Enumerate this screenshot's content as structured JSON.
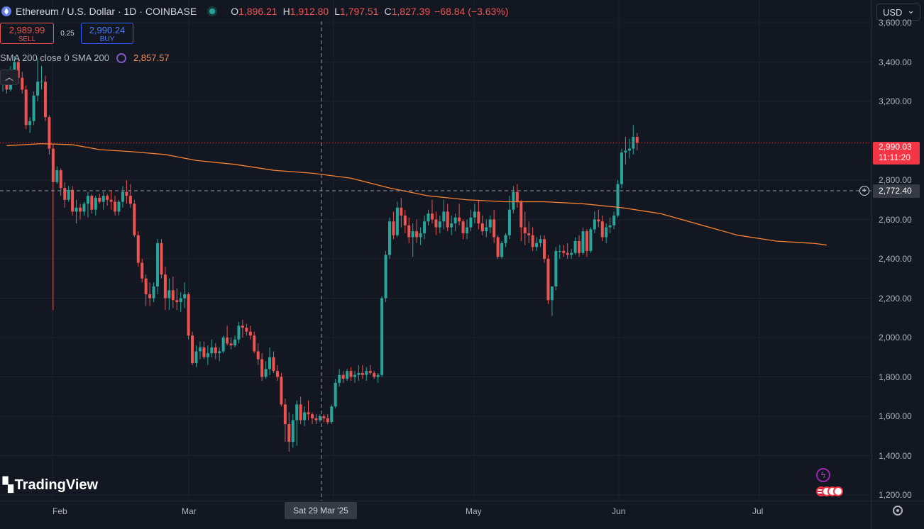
{
  "header": {
    "title": "Ethereum / U.S. Dollar · 1D · COINBASE",
    "open_label": "O",
    "open": "1,896.21",
    "high_label": "H",
    "high": "1,912.80",
    "low_label": "L",
    "low": "1,797.51",
    "close_label": "C",
    "close": "1,827.39",
    "change": "−68.84 (−3.63%)"
  },
  "trade": {
    "sell_price": "2,989.99",
    "sell_label": "SELL",
    "spread": "0.25",
    "buy_price": "2,990.24",
    "buy_label": "BUY"
  },
  "indicator": {
    "label": "SMA 200 close 0 SMA 200",
    "value": "2,857.57"
  },
  "currency": "USD",
  "price_axis": [
    "3,600.00",
    "3,400.00",
    "3,200.00",
    "2,800.00",
    "2,600.00",
    "2,400.00",
    "2,200.00",
    "2,000.00",
    "1,800.00",
    "1,600.00",
    "1,400.00",
    "1,200.00"
  ],
  "current_price": {
    "price": "2,990.03",
    "countdown": "11:11:20"
  },
  "crosshair": {
    "price": "2,772.40",
    "date": "Sat 29 Mar '25"
  },
  "time_axis": [
    "Feb",
    "Mar",
    "May",
    "Jun",
    "Jul"
  ],
  "brand": "TradingView",
  "colors": {
    "up": "#26a69a",
    "down": "#ef5350",
    "sma": "#f7812f",
    "bg": "#131722"
  },
  "chart_data": {
    "type": "candlestick",
    "ylim": [
      1200,
      3650
    ],
    "sma200": [
      [
        1,
        2975
      ],
      [
        10,
        2985
      ],
      [
        18,
        2980
      ],
      [
        25,
        2955
      ],
      [
        33,
        2945
      ],
      [
        42,
        2930
      ],
      [
        50,
        2900
      ],
      [
        60,
        2880
      ],
      [
        70,
        2850
      ],
      [
        80,
        2835
      ],
      [
        90,
        2810
      ],
      [
        100,
        2760
      ],
      [
        110,
        2720
      ],
      [
        120,
        2700
      ],
      [
        130,
        2690
      ],
      [
        140,
        2690
      ],
      [
        150,
        2680
      ],
      [
        160,
        2660
      ],
      [
        170,
        2630
      ],
      [
        180,
        2575
      ],
      [
        190,
        2520
      ],
      [
        200,
        2490
      ],
      [
        210,
        2478
      ],
      [
        213,
        2470
      ]
    ],
    "candles": [
      [
        3290,
        3350,
        3250,
        3330
      ],
      [
        3330,
        3360,
        3240,
        3260
      ],
      [
        3260,
        3380,
        3250,
        3350
      ],
      [
        3350,
        3430,
        3320,
        3400
      ],
      [
        3400,
        3420,
        3290,
        3320
      ],
      [
        3320,
        3350,
        3240,
        3260
      ],
      [
        3260,
        3280,
        3060,
        3080
      ],
      [
        3080,
        3120,
        3040,
        3100
      ],
      [
        3100,
        3250,
        3080,
        3230
      ],
      [
        3230,
        3420,
        3200,
        3300
      ],
      [
        3300,
        3380,
        3260,
        3300
      ],
      [
        3300,
        3330,
        3100,
        3120
      ],
      [
        3120,
        3130,
        2930,
        2960
      ],
      [
        2960,
        2980,
        2140,
        2790
      ],
      [
        2790,
        2870,
        2780,
        2850
      ],
      [
        2850,
        2860,
        2720,
        2760
      ],
      [
        2760,
        2790,
        2660,
        2700
      ],
      [
        2700,
        2770,
        2690,
        2750
      ],
      [
        2750,
        2770,
        2620,
        2640
      ],
      [
        2640,
        2700,
        2580,
        2660
      ],
      [
        2660,
        2680,
        2600,
        2640
      ],
      [
        2640,
        2690,
        2620,
        2680
      ],
      [
        2680,
        2740,
        2610,
        2720
      ],
      [
        2720,
        2730,
        2630,
        2650
      ],
      [
        2650,
        2720,
        2620,
        2710
      ],
      [
        2710,
        2730,
        2680,
        2690
      ],
      [
        2690,
        2740,
        2650,
        2720
      ],
      [
        2720,
        2730,
        2670,
        2700
      ],
      [
        2700,
        2750,
        2650,
        2690
      ],
      [
        2690,
        2720,
        2620,
        2640
      ],
      [
        2640,
        2700,
        2620,
        2690
      ],
      [
        2690,
        2770,
        2660,
        2740
      ],
      [
        2740,
        2800,
        2680,
        2720
      ],
      [
        2720,
        2780,
        2660,
        2680
      ],
      [
        2680,
        2700,
        2510,
        2520
      ],
      [
        2520,
        2540,
        2360,
        2380
      ],
      [
        2380,
        2400,
        2280,
        2300
      ],
      [
        2300,
        2320,
        2160,
        2220
      ],
      [
        2220,
        2280,
        2160,
        2200
      ],
      [
        2200,
        2280,
        2180,
        2260
      ],
      [
        2260,
        2500,
        2220,
        2480
      ],
      [
        2480,
        2500,
        2300,
        2320
      ],
      [
        2320,
        2360,
        2140,
        2200
      ],
      [
        2200,
        2300,
        2140,
        2240
      ],
      [
        2240,
        2310,
        2150,
        2190
      ],
      [
        2190,
        2250,
        2140,
        2180
      ],
      [
        2180,
        2230,
        2130,
        2200
      ],
      [
        2200,
        2280,
        2150,
        2220
      ],
      [
        2220,
        2230,
        1990,
        2010
      ],
      [
        2010,
        2030,
        1860,
        1870
      ],
      [
        1870,
        1960,
        1850,
        1930
      ],
      [
        1930,
        1980,
        1890,
        1950
      ],
      [
        1950,
        1980,
        1890,
        1900
      ],
      [
        1900,
        1960,
        1860,
        1920
      ],
      [
        1920,
        1990,
        1900,
        1950
      ],
      [
        1950,
        1970,
        1890,
        1920
      ],
      [
        1920,
        1950,
        1880,
        1930
      ],
      [
        1930,
        2010,
        1920,
        2000
      ],
      [
        2000,
        2060,
        1960,
        1970
      ],
      [
        1970,
        2000,
        1940,
        1960
      ],
      [
        1960,
        2010,
        1950,
        1990
      ],
      [
        1990,
        2080,
        1970,
        2060
      ],
      [
        2060,
        2090,
        2000,
        2050
      ],
      [
        2050,
        2070,
        2010,
        2030
      ],
      [
        2030,
        2060,
        1990,
        2010
      ],
      [
        2010,
        2030,
        1920,
        1930
      ],
      [
        1930,
        1970,
        1860,
        1890
      ],
      [
        1890,
        1920,
        1780,
        1800
      ],
      [
        1800,
        1880,
        1790,
        1840
      ],
      [
        1840,
        1950,
        1810,
        1900
      ],
      [
        1900,
        1930,
        1820,
        1830
      ],
      [
        1830,
        1860,
        1780,
        1800
      ],
      [
        1800,
        1820,
        1650,
        1660
      ],
      [
        1660,
        1690,
        1470,
        1560
      ],
      [
        1560,
        1620,
        1420,
        1470
      ],
      [
        1470,
        1610,
        1440,
        1580
      ],
      [
        1580,
        1680,
        1450,
        1660
      ],
      [
        1660,
        1700,
        1560,
        1580
      ],
      [
        1580,
        1650,
        1550,
        1620
      ],
      [
        1620,
        1680,
        1580,
        1610
      ],
      [
        1610,
        1620,
        1560,
        1590
      ],
      [
        1590,
        1610,
        1560,
        1580
      ],
      [
        1580,
        1610,
        1570,
        1600
      ],
      [
        1600,
        1610,
        1570,
        1590
      ],
      [
        1590,
        1610,
        1560,
        1570
      ],
      [
        1570,
        1660,
        1560,
        1650
      ],
      [
        1650,
        1790,
        1640,
        1770
      ],
      [
        1770,
        1840,
        1750,
        1810
      ],
      [
        1810,
        1830,
        1770,
        1790
      ],
      [
        1790,
        1840,
        1780,
        1830
      ],
      [
        1830,
        1850,
        1780,
        1800
      ],
      [
        1800,
        1830,
        1770,
        1810
      ],
      [
        1810,
        1860,
        1780,
        1820
      ],
      [
        1820,
        1860,
        1790,
        1810
      ],
      [
        1810,
        1850,
        1780,
        1830
      ],
      [
        1830,
        1860,
        1810,
        1820
      ],
      [
        1820,
        1830,
        1790,
        1800
      ],
      [
        1800,
        1820,
        1770,
        1810
      ],
      [
        1810,
        2210,
        1800,
        2200
      ],
      [
        2200,
        2440,
        2180,
        2420
      ],
      [
        2420,
        2610,
        2400,
        2590
      ],
      [
        2590,
        2640,
        2500,
        2520
      ],
      [
        2520,
        2690,
        2510,
        2660
      ],
      [
        2660,
        2710,
        2560,
        2620
      ],
      [
        2620,
        2650,
        2530,
        2570
      ],
      [
        2570,
        2610,
        2480,
        2510
      ],
      [
        2510,
        2580,
        2410,
        2540
      ],
      [
        2540,
        2600,
        2480,
        2510
      ],
      [
        2510,
        2560,
        2470,
        2530
      ],
      [
        2530,
        2620,
        2500,
        2590
      ],
      [
        2590,
        2650,
        2570,
        2630
      ],
      [
        2630,
        2700,
        2580,
        2600
      ],
      [
        2600,
        2640,
        2520,
        2560
      ],
      [
        2560,
        2620,
        2530,
        2590
      ],
      [
        2590,
        2700,
        2550,
        2640
      ],
      [
        2640,
        2680,
        2540,
        2560
      ],
      [
        2560,
        2620,
        2520,
        2580
      ],
      [
        2580,
        2630,
        2540,
        2610
      ],
      [
        2610,
        2680,
        2570,
        2590
      ],
      [
        2590,
        2600,
        2500,
        2530
      ],
      [
        2530,
        2600,
        2500,
        2560
      ],
      [
        2560,
        2650,
        2540,
        2610
      ],
      [
        2610,
        2680,
        2580,
        2640
      ],
      [
        2640,
        2700,
        2550,
        2580
      ],
      [
        2580,
        2620,
        2520,
        2540
      ],
      [
        2540,
        2600,
        2510,
        2560
      ],
      [
        2560,
        2620,
        2530,
        2600
      ],
      [
        2600,
        2650,
        2480,
        2510
      ],
      [
        2510,
        2520,
        2400,
        2410
      ],
      [
        2410,
        2490,
        2400,
        2480
      ],
      [
        2480,
        2530,
        2460,
        2520
      ],
      [
        2520,
        2720,
        2500,
        2650
      ],
      [
        2650,
        2770,
        2630,
        2740
      ],
      [
        2740,
        2780,
        2660,
        2690
      ],
      [
        2690,
        2700,
        2490,
        2560
      ],
      [
        2560,
        2640,
        2470,
        2530
      ],
      [
        2530,
        2590,
        2480,
        2520
      ],
      [
        2520,
        2560,
        2440,
        2460
      ],
      [
        2460,
        2510,
        2440,
        2480
      ],
      [
        2480,
        2520,
        2460,
        2500
      ],
      [
        2500,
        2520,
        2380,
        2400
      ],
      [
        2400,
        2420,
        2170,
        2190
      ],
      [
        2190,
        2260,
        2110,
        2260
      ],
      [
        2260,
        2460,
        2240,
        2440
      ],
      [
        2440,
        2470,
        2400,
        2440
      ],
      [
        2440,
        2470,
        2410,
        2430
      ],
      [
        2430,
        2480,
        2400,
        2420
      ],
      [
        2420,
        2450,
        2400,
        2430
      ],
      [
        2430,
        2510,
        2420,
        2490
      ],
      [
        2490,
        2520,
        2410,
        2430
      ],
      [
        2430,
        2560,
        2420,
        2540
      ],
      [
        2540,
        2550,
        2410,
        2440
      ],
      [
        2440,
        2560,
        2430,
        2550
      ],
      [
        2550,
        2640,
        2530,
        2600
      ],
      [
        2600,
        2650,
        2560,
        2590
      ],
      [
        2590,
        2620,
        2490,
        2510
      ],
      [
        2510,
        2580,
        2480,
        2560
      ],
      [
        2560,
        2610,
        2530,
        2570
      ],
      [
        2570,
        2640,
        2550,
        2620
      ],
      [
        2620,
        2800,
        2610,
        2780
      ],
      [
        2780,
        2960,
        2760,
        2940
      ],
      [
        2940,
        3020,
        2880,
        2950
      ],
      [
        2950,
        3010,
        2910,
        2960
      ],
      [
        2960,
        3080,
        2930,
        3020
      ],
      [
        3020,
        3040,
        2950,
        2990
      ]
    ]
  }
}
